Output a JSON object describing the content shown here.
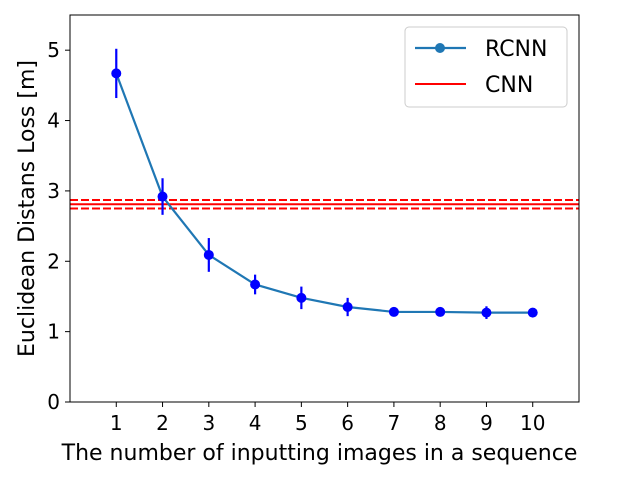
{
  "chart_data": {
    "type": "line",
    "title": "",
    "xlabel": "The number of inputting images in a sequence",
    "ylabel": "Euclidean Distans Loss [m]",
    "x": [
      1,
      2,
      3,
      4,
      5,
      6,
      7,
      8,
      9,
      10
    ],
    "xlim": [
      0,
      11
    ],
    "ylim": [
      0,
      5.5
    ],
    "xticks": [
      1,
      2,
      3,
      4,
      5,
      6,
      7,
      8,
      9,
      10
    ],
    "yticks": [
      0,
      1,
      2,
      3,
      4,
      5
    ],
    "grid": false,
    "legend_position": "top-right",
    "series": [
      {
        "name": "RCNN",
        "kind": "line-with-errorbars",
        "color": "#1f77b4",
        "marker_color": "#0000ff",
        "values": [
          4.67,
          2.92,
          2.09,
          1.67,
          1.48,
          1.35,
          1.28,
          1.28,
          1.27,
          1.27
        ],
        "errors": [
          0.35,
          0.26,
          0.24,
          0.14,
          0.16,
          0.13,
          0.06,
          0.05,
          0.09,
          0.06
        ]
      },
      {
        "name": "CNN",
        "kind": "hline-with-band",
        "color": "#ff0000",
        "value": 2.81,
        "band": [
          2.75,
          2.87
        ]
      }
    ]
  }
}
